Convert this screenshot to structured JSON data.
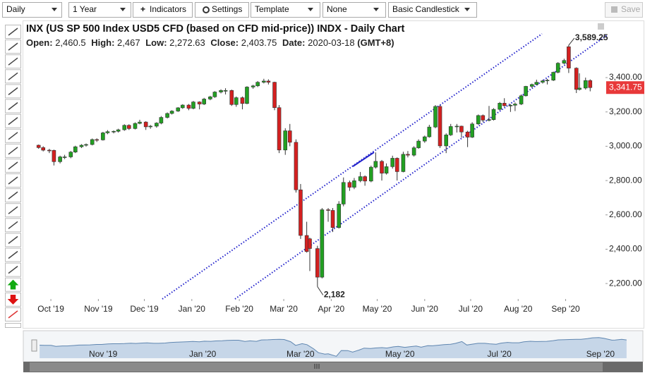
{
  "toolbar": {
    "interval": "Daily",
    "range": "1 Year",
    "indicators": "Indicators",
    "settings": "Settings",
    "template": "Template",
    "overlay": "None",
    "style": "Basic Candlestick",
    "save": "Save"
  },
  "chart_data": {
    "type": "candlestick",
    "title": "INX (US SP 500 Index USD5 CFD (based on CFD mid-price)) INDX - Daily Chart",
    "info": {
      "open_label": "Open:",
      "open": "2,460.5",
      "high_label": "High:",
      "high": "2,467",
      "low_label": "Low:",
      "low": "2,272.63",
      "close_label": "Close:",
      "close": "2,403.75",
      "date_label": "Date:",
      "date": "2020-03-18",
      "timezone": "(GMT+8)"
    },
    "up_color": "#22a022",
    "down_color": "#d42020",
    "wick_color": "#333333",
    "xlim": [
      "2019-09-13",
      "2020-09-27"
    ],
    "xticks": [
      {
        "value": "2019-10-01",
        "label": "Oct '19"
      },
      {
        "value": "2019-11-01",
        "label": "Nov '19"
      },
      {
        "value": "2019-12-01",
        "label": "Dec '19"
      },
      {
        "value": "2020-01-01",
        "label": "Jan '20"
      },
      {
        "value": "2020-02-01",
        "label": "Feb '20"
      },
      {
        "value": "2020-03-01",
        "label": "Mar '20"
      },
      {
        "value": "2020-04-01",
        "label": "Apr '20"
      },
      {
        "value": "2020-05-01",
        "label": "May '20"
      },
      {
        "value": "2020-06-01",
        "label": "Jun '20"
      },
      {
        "value": "2020-07-01",
        "label": "Jul '20"
      },
      {
        "value": "2020-08-01",
        "label": "Aug '20"
      },
      {
        "value": "2020-09-01",
        "label": "Sep '20"
      }
    ],
    "ylim": [
      2110,
      3729
    ],
    "yticks": [
      {
        "value": 2200,
        "label": "2,200.00"
      },
      {
        "value": 2400,
        "label": "2,400.00"
      },
      {
        "value": 2600,
        "label": "2,600.00"
      },
      {
        "value": 2800,
        "label": "2,800.00"
      },
      {
        "value": 3000,
        "label": "3,000.00"
      },
      {
        "value": 3200,
        "label": "3,200.00"
      },
      {
        "value": 3400,
        "label": "3,400.00"
      }
    ],
    "last_price": {
      "value": 3341.75,
      "label": "3,341.75"
    },
    "annotations": [
      {
        "x": "2020-09-03",
        "value": 3589.25,
        "label": "3,589.25"
      },
      {
        "x": "2020-03-23",
        "value": 2182,
        "label": "2,182"
      }
    ],
    "x": [
      "2019-09-23",
      "2019-09-26",
      "2019-09-30",
      "2019-10-03",
      "2019-10-07",
      "2019-10-10",
      "2019-10-14",
      "2019-10-17",
      "2019-10-21",
      "2019-10-24",
      "2019-10-28",
      "2019-10-31",
      "2019-11-04",
      "2019-11-07",
      "2019-11-11",
      "2019-11-14",
      "2019-11-18",
      "2019-11-21",
      "2019-11-25",
      "2019-11-28",
      "2019-12-02",
      "2019-12-05",
      "2019-12-09",
      "2019-12-12",
      "2019-12-16",
      "2019-12-19",
      "2019-12-23",
      "2019-12-26",
      "2019-12-30",
      "2020-01-02",
      "2020-01-06",
      "2020-01-09",
      "2020-01-13",
      "2020-01-16",
      "2020-01-20",
      "2020-01-23",
      "2020-01-27",
      "2020-01-30",
      "2020-02-03",
      "2020-02-06",
      "2020-02-10",
      "2020-02-13",
      "2020-02-17",
      "2020-02-20",
      "2020-02-24",
      "2020-02-27",
      "2020-03-02",
      "2020-03-05",
      "2020-03-09",
      "2020-03-12",
      "2020-03-16",
      "2020-03-18",
      "2020-03-23",
      "2020-03-26",
      "2020-03-30",
      "2020-04-02",
      "2020-04-06",
      "2020-04-09",
      "2020-04-13",
      "2020-04-16",
      "2020-04-20",
      "2020-04-23",
      "2020-04-27",
      "2020-04-30",
      "2020-05-04",
      "2020-05-07",
      "2020-05-11",
      "2020-05-14",
      "2020-05-18",
      "2020-05-21",
      "2020-05-25",
      "2020-05-28",
      "2020-06-01",
      "2020-06-04",
      "2020-06-08",
      "2020-06-11",
      "2020-06-15",
      "2020-06-18",
      "2020-06-22",
      "2020-06-25",
      "2020-06-29",
      "2020-07-02",
      "2020-07-06",
      "2020-07-09",
      "2020-07-13",
      "2020-07-16",
      "2020-07-20",
      "2020-07-23",
      "2020-07-27",
      "2020-07-30",
      "2020-08-03",
      "2020-08-06",
      "2020-08-10",
      "2020-08-13",
      "2020-08-17",
      "2020-08-20",
      "2020-08-24",
      "2020-08-27",
      "2020-08-31",
      "2020-09-03",
      "2020-09-08",
      "2020-09-10",
      "2020-09-14",
      "2020-09-17"
    ],
    "candles": [
      [
        3006,
        3010,
        2985,
        2992
      ],
      [
        2992,
        3000,
        2970,
        2977
      ],
      [
        2977,
        2985,
        2960,
        2976
      ],
      [
        2976,
        2980,
        2888,
        2910
      ],
      [
        2910,
        2945,
        2900,
        2938
      ],
      [
        2938,
        2950,
        2925,
        2938
      ],
      [
        2938,
        2972,
        2930,
        2966
      ],
      [
        2966,
        3003,
        2960,
        2997
      ],
      [
        2997,
        3012,
        2990,
        3006
      ],
      [
        3006,
        3016,
        2998,
        3010
      ],
      [
        3010,
        3045,
        3005,
        3039
      ],
      [
        3039,
        3046,
        3025,
        3037
      ],
      [
        3037,
        3084,
        3033,
        3078
      ],
      [
        3078,
        3094,
        3070,
        3085
      ],
      [
        3085,
        3092,
        3075,
        3087
      ],
      [
        3087,
        3102,
        3080,
        3096
      ],
      [
        3096,
        3128,
        3090,
        3122
      ],
      [
        3122,
        3128,
        3095,
        3103
      ],
      [
        3103,
        3139,
        3098,
        3133
      ],
      [
        3133,
        3154,
        3128,
        3141
      ],
      [
        3141,
        3146,
        3095,
        3113
      ],
      [
        3113,
        3124,
        3102,
        3117
      ],
      [
        3117,
        3140,
        3108,
        3135
      ],
      [
        3135,
        3176,
        3128,
        3168
      ],
      [
        3168,
        3197,
        3162,
        3191
      ],
      [
        3191,
        3210,
        3185,
        3205
      ],
      [
        3205,
        3228,
        3200,
        3224
      ],
      [
        3224,
        3245,
        3218,
        3240
      ],
      [
        3240,
        3246,
        3210,
        3221
      ],
      [
        3221,
        3264,
        3215,
        3258
      ],
      [
        3258,
        3262,
        3215,
        3246
      ],
      [
        3246,
        3282,
        3240,
        3275
      ],
      [
        3275,
        3294,
        3268,
        3288
      ],
      [
        3288,
        3321,
        3282,
        3316
      ],
      [
        3316,
        3332,
        3308,
        3325
      ],
      [
        3325,
        3338,
        3302,
        3325
      ],
      [
        3325,
        3330,
        3235,
        3243
      ],
      [
        3243,
        3290,
        3230,
        3283
      ],
      [
        3283,
        3290,
        3215,
        3249
      ],
      [
        3249,
        3350,
        3245,
        3345
      ],
      [
        3345,
        3358,
        3335,
        3352
      ],
      [
        3352,
        3380,
        3345,
        3373
      ],
      [
        3373,
        3393,
        3366,
        3380
      ],
      [
        3380,
        3390,
        3360,
        3373
      ],
      [
        3373,
        3376,
        3210,
        3225
      ],
      [
        3225,
        3240,
        2960,
        2978
      ],
      [
        2978,
        3105,
        2950,
        3090
      ],
      [
        3090,
        3130,
        3000,
        3023
      ],
      [
        3023,
        3040,
        2730,
        2746
      ],
      [
        2746,
        2780,
        2460,
        2480
      ],
      [
        2480,
        2560,
        2380,
        2386
      ],
      [
        2460.5,
        2467,
        2272.63,
        2403.75
      ],
      [
        2403.75,
        2420,
        2182,
        2237
      ],
      [
        2237,
        2640,
        2230,
        2630
      ],
      [
        2630,
        2640,
        2560,
        2626
      ],
      [
        2626,
        2640,
        2500,
        2526
      ],
      [
        2526,
        2680,
        2520,
        2663
      ],
      [
        2663,
        2818,
        2650,
        2789
      ],
      [
        2789,
        2800,
        2740,
        2761
      ],
      [
        2761,
        2815,
        2750,
        2799
      ],
      [
        2799,
        2850,
        2790,
        2823
      ],
      [
        2823,
        2830,
        2770,
        2797
      ],
      [
        2797,
        2887,
        2790,
        2878
      ],
      [
        2878,
        2964,
        2870,
        2912
      ],
      [
        2912,
        2920,
        2800,
        2843
      ],
      [
        2843,
        2900,
        2835,
        2881
      ],
      [
        2881,
        2945,
        2870,
        2930
      ],
      [
        2930,
        2935,
        2800,
        2852
      ],
      [
        2852,
        2968,
        2848,
        2953
      ],
      [
        2953,
        2972,
        2935,
        2948
      ],
      [
        2948,
        3000,
        2940,
        2991
      ],
      [
        2991,
        3040,
        2985,
        3030
      ],
      [
        3030,
        3062,
        3020,
        3055
      ],
      [
        3055,
        3125,
        3050,
        3112
      ],
      [
        3112,
        3240,
        3105,
        3232
      ],
      [
        3232,
        3240,
        2990,
        3002
      ],
      [
        3002,
        3075,
        2960,
        3066
      ],
      [
        3066,
        3130,
        3060,
        3115
      ],
      [
        3115,
        3130,
        3080,
        3117
      ],
      [
        3117,
        3120,
        3050,
        3083
      ],
      [
        3083,
        3090,
        2995,
        3053
      ],
      [
        3053,
        3140,
        3048,
        3130
      ],
      [
        3130,
        3185,
        3125,
        3179
      ],
      [
        3179,
        3185,
        3140,
        3152
      ],
      [
        3152,
        3235,
        3145,
        3155
      ],
      [
        3155,
        3222,
        3150,
        3215
      ],
      [
        3215,
        3258,
        3210,
        3251
      ],
      [
        3251,
        3280,
        3230,
        3236
      ],
      [
        3236,
        3245,
        3200,
        3239
      ],
      [
        3239,
        3255,
        3205,
        3246
      ],
      [
        3246,
        3302,
        3240,
        3294
      ],
      [
        3294,
        3352,
        3290,
        3349
      ],
      [
        3349,
        3365,
        3340,
        3360
      ],
      [
        3360,
        3388,
        3355,
        3373
      ],
      [
        3373,
        3388,
        3365,
        3381
      ],
      [
        3381,
        3392,
        3360,
        3385
      ],
      [
        3385,
        3435,
        3380,
        3431
      ],
      [
        3431,
        3490,
        3425,
        3484
      ],
      [
        3484,
        3510,
        3478,
        3500
      ],
      [
        3580,
        3589.25,
        3427,
        3455
      ],
      [
        3455,
        3460,
        3310,
        3331
      ],
      [
        3331,
        3425,
        3325,
        3339
      ],
      [
        3339,
        3400,
        3330,
        3383
      ],
      [
        3383,
        3390,
        3320,
        3341.75
      ]
    ]
  }
}
